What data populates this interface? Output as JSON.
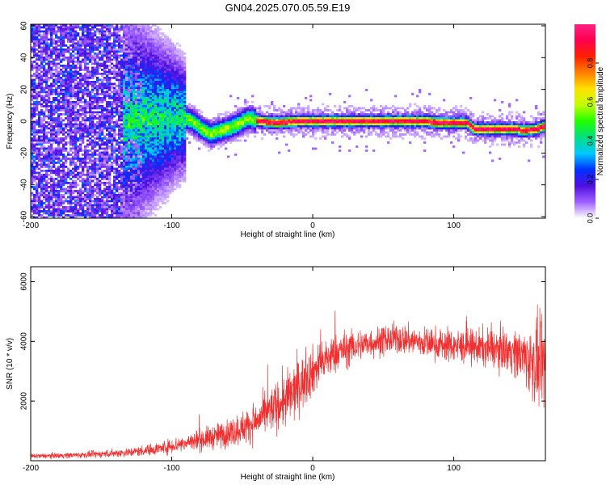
{
  "title": "GN04.2025.070.05.59.E19",
  "chart_data": [
    {
      "type": "heatmap",
      "panel": "spectrogram",
      "xlabel": "Height of straight line (km)",
      "ylabel": "Frequency (Hz)",
      "xlim": [
        -200,
        165
      ],
      "ylim": [
        -61,
        61
      ],
      "xticks": [
        -200,
        -100,
        0,
        100
      ],
      "yticks": [
        60,
        40,
        20,
        0,
        -20,
        -40,
        -60
      ],
      "colorbar": {
        "label": "Normalized spectral amplitude",
        "range": [
          0,
          1
        ],
        "ticks": [
          0.0,
          0.2,
          0.4,
          0.6,
          0.8
        ],
        "colormap": [
          "#ffffff",
          "#a060ff",
          "#5010e0",
          "#0030ff",
          "#00c8ff",
          "#00e080",
          "#20ff00",
          "#c0ff00",
          "#ffe000",
          "#ff8000",
          "#ff2000",
          "#ff0050",
          "#ff2080"
        ]
      },
      "ridge": {
        "description_points": [
          [
            -130,
            0
          ],
          [
            -110,
            2
          ],
          [
            -95,
            3
          ],
          [
            -85,
            0
          ],
          [
            -78,
            -5
          ],
          [
            -72,
            -8
          ],
          [
            -65,
            -6
          ],
          [
            -55,
            -3
          ],
          [
            -45,
            2
          ],
          [
            -38,
            0
          ],
          [
            -25,
            -1
          ],
          [
            -10,
            0
          ],
          [
            0,
            0
          ],
          [
            20,
            0
          ],
          [
            40,
            0
          ],
          [
            60,
            0
          ],
          [
            80,
            0
          ],
          [
            90,
            -1
          ],
          [
            110,
            -1
          ],
          [
            115,
            -5
          ],
          [
            125,
            -5
          ],
          [
            135,
            -5
          ],
          [
            145,
            -5
          ],
          [
            150,
            -6
          ],
          [
            160,
            -5
          ],
          [
            165,
            -3
          ]
        ]
      }
    },
    {
      "type": "line",
      "panel": "snr",
      "xlabel": "Height of straight line (km)",
      "ylabel": "SNR (10 * v/v)",
      "xlim": [
        -200,
        165
      ],
      "ylim": [
        0,
        6500
      ],
      "xticks": [
        -200,
        -100,
        0,
        100
      ],
      "yticks": [
        2000,
        4000,
        6000
      ],
      "color": "#f03030",
      "envelope": {
        "x": [
          -200,
          -160,
          -130,
          -110,
          -90,
          -70,
          -55,
          -40,
          -30,
          -20,
          -15,
          -10,
          0,
          10,
          20,
          40,
          60,
          80,
          100,
          120,
          140,
          150,
          155,
          160,
          165
        ],
        "mean": [
          150,
          200,
          280,
          400,
          600,
          800,
          1000,
          1300,
          1700,
          2000,
          2200,
          2500,
          3000,
          3400,
          3700,
          3950,
          4100,
          3950,
          3850,
          3800,
          3700,
          3500,
          3300,
          3200,
          3100
        ],
        "amp": [
          80,
          100,
          150,
          200,
          300,
          400,
          500,
          600,
          700,
          900,
          1000,
          900,
          800,
          700,
          600,
          500,
          500,
          500,
          550,
          600,
          700,
          900,
          1200,
          1500,
          1200
        ]
      }
    }
  ]
}
